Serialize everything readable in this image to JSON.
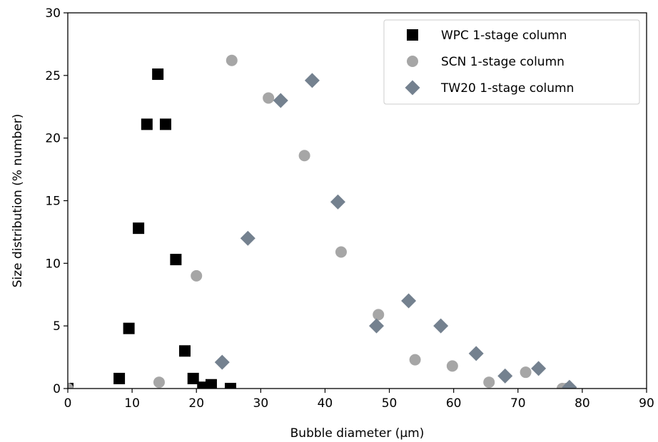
{
  "chart_data": {
    "type": "scatter",
    "xlabel": "Bubble diameter (µm)",
    "ylabel": "Size distribution (% number)",
    "xlim": [
      0,
      90
    ],
    "ylim": [
      0,
      30
    ],
    "xticks": [
      0,
      10,
      20,
      30,
      40,
      50,
      60,
      70,
      80,
      90
    ],
    "yticks": [
      0,
      5,
      10,
      15,
      20,
      25,
      30
    ],
    "grid": false,
    "legend_position": "top-right",
    "series": [
      {
        "name": "WPC 1-stage column",
        "marker": "square",
        "color": "#000000",
        "points": [
          [
            0,
            0
          ],
          [
            8,
            0.8
          ],
          [
            9.5,
            4.8
          ],
          [
            11,
            12.8
          ],
          [
            12.3,
            21.1
          ],
          [
            14,
            25.1
          ],
          [
            15.2,
            21.1
          ],
          [
            16.8,
            10.3
          ],
          [
            18.2,
            3
          ],
          [
            19.5,
            0.8
          ],
          [
            21,
            0.1
          ],
          [
            22.3,
            0.3
          ],
          [
            25.3,
            0
          ]
        ]
      },
      {
        "name": "SCN 1-stage column",
        "marker": "circle",
        "color": "#a6a6a6",
        "points": [
          [
            0,
            0
          ],
          [
            14.2,
            0.5
          ],
          [
            20,
            9
          ],
          [
            25.5,
            26.2
          ],
          [
            31.2,
            23.2
          ],
          [
            36.8,
            18.6
          ],
          [
            42.5,
            10.9
          ],
          [
            48.3,
            5.9
          ],
          [
            54,
            2.3
          ],
          [
            59.8,
            1.8
          ],
          [
            65.5,
            0.5
          ],
          [
            71.2,
            1.3
          ],
          [
            76.9,
            0
          ],
          [
            77.5,
            0
          ]
        ]
      },
      {
        "name": "TW20 1-stage column",
        "marker": "diamond",
        "color": "#74818f",
        "points": [
          [
            24,
            2.1
          ],
          [
            28,
            12
          ],
          [
            33.1,
            23
          ],
          [
            38,
            24.6
          ],
          [
            42,
            14.9
          ],
          [
            48,
            5
          ],
          [
            53,
            7
          ],
          [
            58,
            5
          ],
          [
            63.5,
            2.8
          ],
          [
            68,
            1
          ],
          [
            73.2,
            1.6
          ],
          [
            78,
            0.1
          ]
        ]
      }
    ]
  }
}
